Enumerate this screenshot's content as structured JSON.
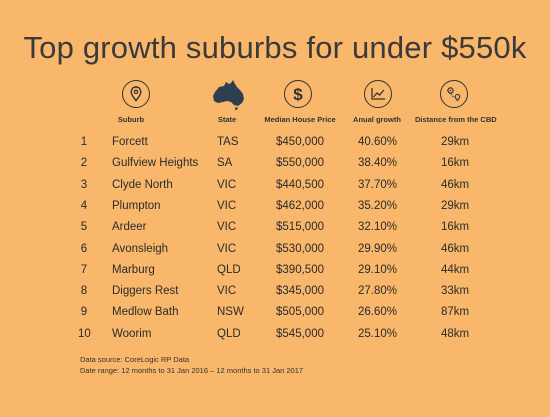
{
  "title": "Top growth suburbs for under $550k",
  "headers": {
    "suburb": "Suburb",
    "state": "State",
    "price": "Median House Price",
    "growth": "Anual growth",
    "distance": "Distance from the CBD"
  },
  "icons": [
    "location-pin-icon",
    "australia-map-icon",
    "dollar-icon",
    "growth-chart-icon",
    "route-icon"
  ],
  "rows": [
    {
      "rank": "1",
      "suburb": "Forcett",
      "state": "TAS",
      "price": "$450,000",
      "growth": "40.60%",
      "distance": "29km"
    },
    {
      "rank": "2",
      "suburb": "Gulfview Heights",
      "state": "SA",
      "price": "$550,000",
      "growth": "38.40%",
      "distance": "16km"
    },
    {
      "rank": "3",
      "suburb": "Clyde North",
      "state": "VIC",
      "price": "$440,500",
      "growth": "37.70%",
      "distance": "46km"
    },
    {
      "rank": "4",
      "suburb": "Plumpton",
      "state": "VIC",
      "price": "$462,000",
      "growth": "35.20%",
      "distance": "29km"
    },
    {
      "rank": "5",
      "suburb": "Ardeer",
      "state": "VIC",
      "price": "$515,000",
      "growth": "32.10%",
      "distance": "16km"
    },
    {
      "rank": "6",
      "suburb": "Avonsleigh",
      "state": "VIC",
      "price": "$530,000",
      "growth": "29.90%",
      "distance": "46km"
    },
    {
      "rank": "7",
      "suburb": "Marburg",
      "state": "QLD",
      "price": "$390,500",
      "growth": "29.10%",
      "distance": "44km"
    },
    {
      "rank": "8",
      "suburb": "Diggers Rest",
      "state": "VIC",
      "price": "$345,000",
      "growth": "27.80%",
      "distance": "33km"
    },
    {
      "rank": "9",
      "suburb": "Medlow Bath",
      "state": "NSW",
      "price": "$505,000",
      "growth": "26.60%",
      "distance": "87km"
    },
    {
      "rank": "10",
      "suburb": "Woorim",
      "state": "QLD",
      "price": "$545,000",
      "growth": "25.10%",
      "distance": "48km"
    }
  ],
  "footer": {
    "source": "Data source: CoreLogic RP Data",
    "range": "Date range: 12 months to 31 Jan 2016 – 12 months to 31 Jan 2017"
  },
  "colors": {
    "background": "#F9B76B",
    "text": "#2f2f2f"
  },
  "chart_data": {
    "type": "table",
    "title": "Top growth suburbs for under $550k",
    "columns": [
      "",
      "Suburb",
      "State",
      "Median House Price",
      "Anual growth",
      "Distance from the CBD"
    ],
    "rows": [
      [
        "1",
        "Forcett",
        "TAS",
        "$450,000",
        "40.60%",
        "29km"
      ],
      [
        "2",
        "Gulfview Heights",
        "SA",
        "$550,000",
        "38.40%",
        "16km"
      ],
      [
        "3",
        "Clyde North",
        "VIC",
        "$440,500",
        "37.70%",
        "46km"
      ],
      [
        "4",
        "Plumpton",
        "VIC",
        "$462,000",
        "35.20%",
        "29km"
      ],
      [
        "5",
        "Ardeer",
        "VIC",
        "$515,000",
        "32.10%",
        "16km"
      ],
      [
        "6",
        "Avonsleigh",
        "VIC",
        "$530,000",
        "29.90%",
        "46km"
      ],
      [
        "7",
        "Marburg",
        "QLD",
        "$390,500",
        "29.10%",
        "44km"
      ],
      [
        "8",
        "Diggers Rest",
        "VIC",
        "$345,000",
        "27.80%",
        "33km"
      ],
      [
        "9",
        "Medlow Bath",
        "NSW",
        "$505,000",
        "26.60%",
        "87km"
      ],
      [
        "10",
        "Woorim",
        "QLD",
        "$545,000",
        "25.10%",
        "48km"
      ]
    ]
  }
}
